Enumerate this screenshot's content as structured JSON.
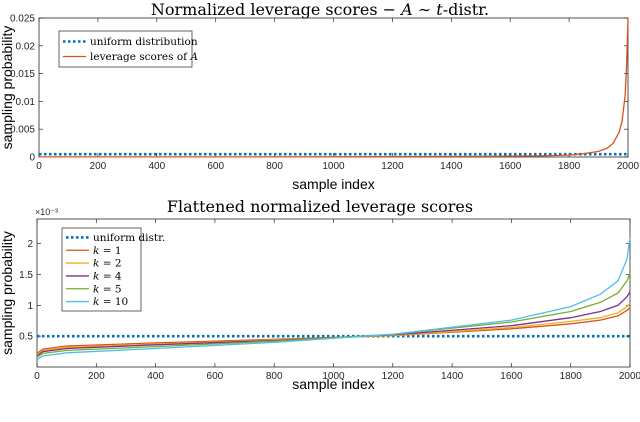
{
  "chart_data": [
    {
      "type": "line",
      "title": "Normalized leverage scores − A ∼ t-distr.",
      "title_parts": {
        "lead": "Normalized leverage scores − ",
        "italic1": "A",
        "mid": " ∼ ",
        "italic2": "t",
        "tail": "-distr."
      },
      "xlabel": "sample index",
      "ylabel": "sampling probability",
      "xlim": [
        0,
        2000
      ],
      "ylim": [
        0,
        0.025
      ],
      "xticks": [
        0,
        200,
        400,
        600,
        800,
        1000,
        1200,
        1400,
        1600,
        1800,
        2000
      ],
      "yticks": [
        0,
        0.005,
        0.01,
        0.015,
        0.02,
        0.025
      ],
      "ytick_labels": [
        "0",
        "0.005",
        "0.01",
        "0.015",
        "0.02",
        "0.025"
      ],
      "legend_position": "top-left",
      "series": [
        {
          "name": "uniform distribution",
          "style": "dotted",
          "color": "#0072BD",
          "x": [
            0,
            2000
          ],
          "y": [
            0.0005,
            0.0005
          ]
        },
        {
          "name": "leverage scores of A",
          "name_parts": {
            "text": "leverage scores of ",
            "italic": "A"
          },
          "style": "solid",
          "color": "#D95319",
          "x": [
            0,
            500,
            1000,
            1500,
            1700,
            1800,
            1850,
            1900,
            1930,
            1950,
            1970,
            1980,
            1990,
            1995,
            2000
          ],
          "y": [
            1e-05,
            2e-05,
            4e-05,
            0.0001,
            0.0002,
            0.00035,
            0.0006,
            0.001,
            0.0016,
            0.0025,
            0.0045,
            0.0065,
            0.011,
            0.016,
            0.025
          ]
        }
      ]
    },
    {
      "type": "line",
      "title": "Flattened normalized leverage scores",
      "xlabel": "sample index",
      "ylabel": "sampling probability",
      "y_exponent": "×10⁻³",
      "xlim": [
        0,
        2000
      ],
      "ylim": [
        0,
        0.0024
      ],
      "xticks": [
        0,
        200,
        400,
        600,
        800,
        1000,
        1200,
        1400,
        1600,
        1800,
        2000
      ],
      "yticks": [
        0.0005,
        0.001,
        0.0015,
        0.002
      ],
      "ytick_labels": [
        "0.5",
        "1",
        "1.5",
        "2"
      ],
      "legend_position": "top-left",
      "series": [
        {
          "name": "uniform distr.",
          "style": "dotted",
          "color": "#0072BD",
          "x": [
            0,
            2000
          ],
          "y": [
            0.0005,
            0.0005
          ]
        },
        {
          "name": "k = 1",
          "style": "solid",
          "color": "#D95319",
          "x": [
            0,
            20,
            100,
            400,
            800,
            1200,
            1600,
            1800,
            1900,
            1960,
            1990,
            2000
          ],
          "y": [
            0.00022,
            0.00029,
            0.00034,
            0.00039,
            0.00045,
            0.00051,
            0.00062,
            0.0007,
            0.00076,
            0.00083,
            0.00092,
            0.00096
          ]
        },
        {
          "name": "k = 2",
          "style": "solid",
          "color": "#EDB120",
          "x": [
            0,
            20,
            100,
            400,
            800,
            1200,
            1600,
            1800,
            1900,
            1960,
            1990,
            2000
          ],
          "y": [
            0.0002,
            0.00027,
            0.00032,
            0.00037,
            0.00044,
            0.00051,
            0.00064,
            0.00074,
            0.0008,
            0.00088,
            0.00098,
            0.00103
          ]
        },
        {
          "name": "k = 4",
          "style": "solid",
          "color": "#7E2F8E",
          "x": [
            0,
            20,
            100,
            400,
            800,
            1200,
            1600,
            1800,
            1900,
            1960,
            1990,
            2000
          ],
          "y": [
            0.00018,
            0.00025,
            0.0003,
            0.00036,
            0.00043,
            0.00052,
            0.00067,
            0.0008,
            0.0009,
            0.001,
            0.00114,
            0.00122
          ]
        },
        {
          "name": "k = 5",
          "style": "solid",
          "color": "#77AC30",
          "x": [
            0,
            20,
            100,
            400,
            800,
            1200,
            1600,
            1800,
            1900,
            1960,
            1990,
            2000
          ],
          "y": [
            0.00016,
            0.00022,
            0.00027,
            0.00033,
            0.00042,
            0.00053,
            0.00073,
            0.0009,
            0.00105,
            0.0012,
            0.0014,
            0.00152
          ]
        },
        {
          "name": "k = 10",
          "style": "solid",
          "color": "#4DBEEE",
          "x": [
            0,
            20,
            100,
            400,
            800,
            1200,
            1600,
            1800,
            1900,
            1960,
            1990,
            2000
          ],
          "y": [
            0.00012,
            0.00018,
            0.00023,
            0.0003,
            0.0004,
            0.00053,
            0.00076,
            0.00098,
            0.00118,
            0.0014,
            0.00175,
            0.0021
          ]
        }
      ]
    }
  ]
}
